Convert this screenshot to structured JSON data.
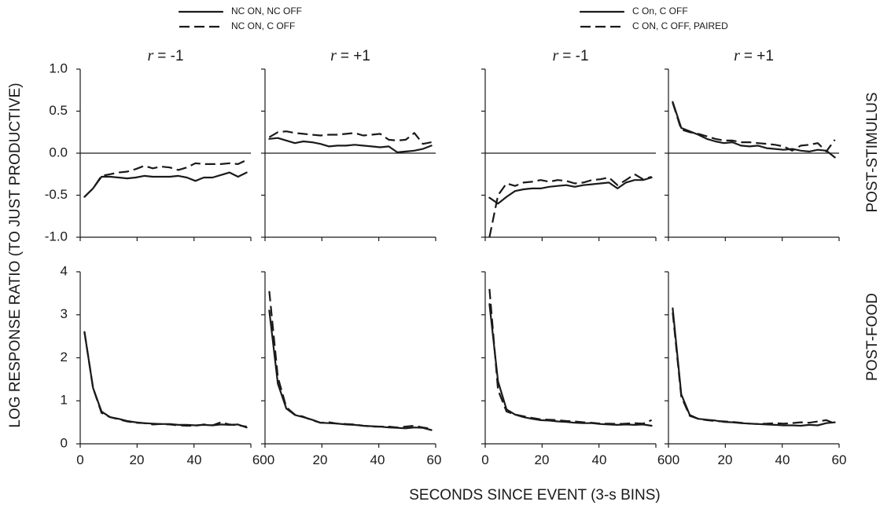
{
  "figure": {
    "xlabel": "SECONDS SINCE EVENT (3-s BINS)",
    "ylabel": "LOG RESPONSE RATIO (TO JUST PRODUCTIVE)",
    "row_labels": [
      "POST-STIMULUS",
      "POST-FOOD"
    ],
    "legends": [
      {
        "items": [
          {
            "label": "NC ON, NC OFF",
            "style": "solid"
          },
          {
            "label": "NC ON, C OFF",
            "style": "dashed"
          }
        ]
      },
      {
        "items": [
          {
            "label": "C On, C OFF",
            "style": "solid"
          },
          {
            "label": "C ON, C OFF, PAIRED",
            "style": "dashed"
          }
        ]
      }
    ],
    "panel_title_prefix": "r",
    "panel_title_values": [
      "= -1",
      "= +1",
      "= -1",
      "= +1"
    ],
    "x_tick_labels": [
      "0",
      "20",
      "40",
      "60"
    ],
    "x_tick_labels_joined": [
      "0",
      "20",
      "40",
      "600",
      "20",
      "40",
      "60",
      "0",
      "20",
      "40",
      "600",
      "20",
      "40",
      "60"
    ],
    "top_y_tick_labels": [
      "1.0",
      "0.5",
      "0.0",
      "-0.5",
      "-1.0"
    ],
    "bottom_y_tick_labels": [
      "4",
      "3",
      "2",
      "1",
      "0"
    ]
  },
  "chart_data": [
    {
      "type": "line",
      "row": "POST-STIMULUS",
      "title": "r = -1",
      "group": 1,
      "xlim": [
        0,
        60
      ],
      "ylim": [
        -1.0,
        1.0
      ],
      "x": [
        1.5,
        4.5,
        7.5,
        10.5,
        13.5,
        16.5,
        19.5,
        22.5,
        25.5,
        28.5,
        31.5,
        34.5,
        37.5,
        40.5,
        43.5,
        46.5,
        49.5,
        52.5,
        55.5,
        58.5
      ],
      "series": [
        {
          "name": "NC ON, NC OFF",
          "style": "solid",
          "values": [
            -0.52,
            -0.42,
            -0.28,
            -0.28,
            -0.29,
            -0.3,
            -0.29,
            -0.27,
            -0.28,
            -0.28,
            -0.28,
            -0.27,
            -0.29,
            -0.33,
            -0.29,
            -0.29,
            -0.26,
            -0.23,
            -0.28,
            -0.23
          ]
        },
        {
          "name": "NC ON, C OFF",
          "style": "dashed",
          "values": [
            -0.52,
            -0.42,
            -0.27,
            -0.25,
            -0.23,
            -0.22,
            -0.19,
            -0.15,
            -0.18,
            -0.16,
            -0.17,
            -0.2,
            -0.17,
            -0.12,
            -0.13,
            -0.13,
            -0.13,
            -0.12,
            -0.13,
            -0.08
          ]
        }
      ]
    },
    {
      "type": "line",
      "row": "POST-STIMULUS",
      "title": "r = +1",
      "group": 1,
      "xlim": [
        0,
        60
      ],
      "ylim": [
        -1.0,
        1.0
      ],
      "x": [
        1.5,
        4.5,
        7.5,
        10.5,
        13.5,
        16.5,
        19.5,
        22.5,
        25.5,
        28.5,
        31.5,
        34.5,
        37.5,
        40.5,
        43.5,
        46.5,
        49.5,
        52.5,
        55.5,
        58.5
      ],
      "series": [
        {
          "name": "NC ON, NC OFF",
          "style": "solid",
          "values": [
            0.17,
            0.18,
            0.15,
            0.12,
            0.14,
            0.13,
            0.11,
            0.08,
            0.09,
            0.09,
            0.1,
            0.09,
            0.08,
            0.07,
            0.08,
            0.01,
            0.02,
            0.03,
            0.05,
            0.09
          ]
        },
        {
          "name": "NC ON, C OFF",
          "style": "dashed",
          "values": [
            0.19,
            0.25,
            0.26,
            0.24,
            0.23,
            0.22,
            0.21,
            0.22,
            0.22,
            0.23,
            0.24,
            0.21,
            0.22,
            0.23,
            0.16,
            0.15,
            0.16,
            0.24,
            0.11,
            0.13
          ]
        }
      ]
    },
    {
      "type": "line",
      "row": "POST-STIMULUS",
      "title": "r = -1",
      "group": 2,
      "xlim": [
        0,
        60
      ],
      "ylim": [
        -1.0,
        1.0
      ],
      "x": [
        1.5,
        4.5,
        7.5,
        10.5,
        13.5,
        16.5,
        19.5,
        22.5,
        25.5,
        28.5,
        31.5,
        34.5,
        37.5,
        40.5,
        43.5,
        46.5,
        49.5,
        52.5,
        55.5,
        58.5
      ],
      "series": [
        {
          "name": "C On, C OFF",
          "style": "solid",
          "values": [
            -0.53,
            -0.6,
            -0.52,
            -0.45,
            -0.43,
            -0.42,
            -0.42,
            -0.4,
            -0.39,
            -0.38,
            -0.4,
            -0.38,
            -0.37,
            -0.36,
            -0.35,
            -0.42,
            -0.35,
            -0.32,
            -0.32,
            -0.29
          ]
        },
        {
          "name": "C ON, C OFF, PAIRED",
          "style": "dashed",
          "values": [
            -1.0,
            -0.5,
            -0.36,
            -0.39,
            -0.35,
            -0.34,
            -0.32,
            -0.34,
            -0.32,
            -0.33,
            -0.36,
            -0.35,
            -0.32,
            -0.31,
            -0.29,
            -0.38,
            -0.32,
            -0.25,
            -0.31,
            -0.28
          ]
        }
      ]
    },
    {
      "type": "line",
      "row": "POST-STIMULUS",
      "title": "r = +1",
      "group": 2,
      "xlim": [
        0,
        60
      ],
      "ylim": [
        -1.0,
        1.0
      ],
      "x": [
        1.5,
        4.5,
        7.5,
        10.5,
        13.5,
        16.5,
        19.5,
        22.5,
        25.5,
        28.5,
        31.5,
        34.5,
        37.5,
        40.5,
        43.5,
        46.5,
        49.5,
        52.5,
        55.5,
        58.5
      ],
      "series": [
        {
          "name": "C On, C OFF",
          "style": "solid",
          "values": [
            0.61,
            0.3,
            0.26,
            0.22,
            0.17,
            0.14,
            0.12,
            0.13,
            0.09,
            0.08,
            0.09,
            0.06,
            0.05,
            0.04,
            0.05,
            0.03,
            0.02,
            0.04,
            0.03,
            -0.05
          ]
        },
        {
          "name": "C ON, C OFF, PAIRED",
          "style": "dashed",
          "values": [
            0.6,
            0.28,
            0.25,
            0.23,
            0.2,
            0.17,
            0.15,
            0.15,
            0.13,
            0.13,
            0.12,
            0.11,
            0.1,
            0.08,
            0.03,
            0.09,
            0.1,
            0.12,
            0.02,
            0.16
          ]
        }
      ]
    },
    {
      "type": "line",
      "row": "POST-FOOD",
      "title": "r = -1",
      "group": 1,
      "xlim": [
        0,
        60
      ],
      "ylim": [
        0,
        4
      ],
      "x": [
        1.5,
        4.5,
        7.5,
        10.5,
        13.5,
        16.5,
        19.5,
        22.5,
        25.5,
        28.5,
        31.5,
        34.5,
        37.5,
        40.5,
        43.5,
        46.5,
        49.5,
        52.5,
        55.5,
        58.5
      ],
      "series": [
        {
          "name": "NC ON, NC OFF",
          "style": "solid",
          "values": [
            2.6,
            1.3,
            0.75,
            0.62,
            0.58,
            0.53,
            0.5,
            0.48,
            0.47,
            0.46,
            0.46,
            0.44,
            0.44,
            0.43,
            0.44,
            0.43,
            0.45,
            0.44,
            0.45,
            0.38
          ]
        },
        {
          "name": "NC ON, C OFF",
          "style": "dashed",
          "values": [
            2.6,
            1.3,
            0.72,
            0.62,
            0.57,
            0.52,
            0.49,
            0.48,
            0.45,
            0.46,
            0.45,
            0.43,
            0.42,
            0.42,
            0.45,
            0.43,
            0.5,
            0.45,
            0.43,
            0.4
          ]
        }
      ]
    },
    {
      "type": "line",
      "row": "POST-FOOD",
      "title": "r = +1",
      "group": 1,
      "xlim": [
        0,
        60
      ],
      "ylim": [
        0,
        4
      ],
      "x": [
        1.5,
        4.5,
        7.5,
        10.5,
        13.5,
        16.5,
        19.5,
        22.5,
        25.5,
        28.5,
        31.5,
        34.5,
        37.5,
        40.5,
        43.5,
        46.5,
        49.5,
        52.5,
        55.5,
        58.5
      ],
      "series": [
        {
          "name": "NC ON, NC OFF",
          "style": "solid",
          "values": [
            3.1,
            1.4,
            0.82,
            0.67,
            0.62,
            0.56,
            0.49,
            0.48,
            0.47,
            0.45,
            0.44,
            0.42,
            0.41,
            0.4,
            0.38,
            0.37,
            0.36,
            0.38,
            0.37,
            0.32
          ]
        },
        {
          "name": "NC ON, C OFF",
          "style": "dashed",
          "values": [
            3.55,
            1.55,
            0.85,
            0.68,
            0.63,
            0.55,
            0.49,
            0.5,
            0.47,
            0.46,
            0.45,
            0.42,
            0.4,
            0.4,
            0.4,
            0.38,
            0.4,
            0.42,
            0.38,
            0.35
          ]
        }
      ]
    },
    {
      "type": "line",
      "row": "POST-FOOD",
      "title": "r = -1",
      "group": 2,
      "xlim": [
        0,
        60
      ],
      "ylim": [
        0,
        4
      ],
      "x": [
        1.5,
        4.5,
        7.5,
        10.5,
        13.5,
        16.5,
        19.5,
        22.5,
        25.5,
        28.5,
        31.5,
        34.5,
        37.5,
        40.5,
        43.5,
        46.5,
        49.5,
        52.5,
        55.5,
        58.5
      ],
      "series": [
        {
          "name": "C On, C OFF",
          "style": "solid",
          "values": [
            3.25,
            1.45,
            0.8,
            0.68,
            0.62,
            0.58,
            0.55,
            0.54,
            0.52,
            0.51,
            0.49,
            0.48,
            0.48,
            0.46,
            0.45,
            0.44,
            0.45,
            0.44,
            0.45,
            0.42
          ]
        },
        {
          "name": "C ON, C OFF, PAIRED",
          "style": "dashed",
          "values": [
            3.6,
            1.25,
            0.75,
            0.68,
            0.64,
            0.6,
            0.57,
            0.56,
            0.55,
            0.53,
            0.52,
            0.5,
            0.49,
            0.47,
            0.47,
            0.46,
            0.47,
            0.48,
            0.47,
            0.55
          ]
        }
      ]
    },
    {
      "type": "line",
      "row": "POST-FOOD",
      "title": "r = +1",
      "group": 2,
      "xlim": [
        0,
        60
      ],
      "ylim": [
        0,
        4
      ],
      "x": [
        1.5,
        4.5,
        7.5,
        10.5,
        13.5,
        16.5,
        19.5,
        22.5,
        25.5,
        28.5,
        31.5,
        34.5,
        37.5,
        40.5,
        43.5,
        46.5,
        49.5,
        52.5,
        55.5,
        58.5
      ],
      "series": [
        {
          "name": "C On, C OFF",
          "style": "solid",
          "values": [
            3.15,
            1.15,
            0.67,
            0.58,
            0.56,
            0.54,
            0.51,
            0.5,
            0.48,
            0.47,
            0.46,
            0.45,
            0.44,
            0.43,
            0.43,
            0.42,
            0.44,
            0.43,
            0.48,
            0.5
          ]
        },
        {
          "name": "C ON, C OFF, PAIRED",
          "style": "dashed",
          "values": [
            3.05,
            1.1,
            0.65,
            0.58,
            0.55,
            0.53,
            0.52,
            0.51,
            0.49,
            0.47,
            0.46,
            0.47,
            0.48,
            0.47,
            0.48,
            0.5,
            0.49,
            0.52,
            0.55,
            0.47
          ]
        }
      ]
    }
  ]
}
